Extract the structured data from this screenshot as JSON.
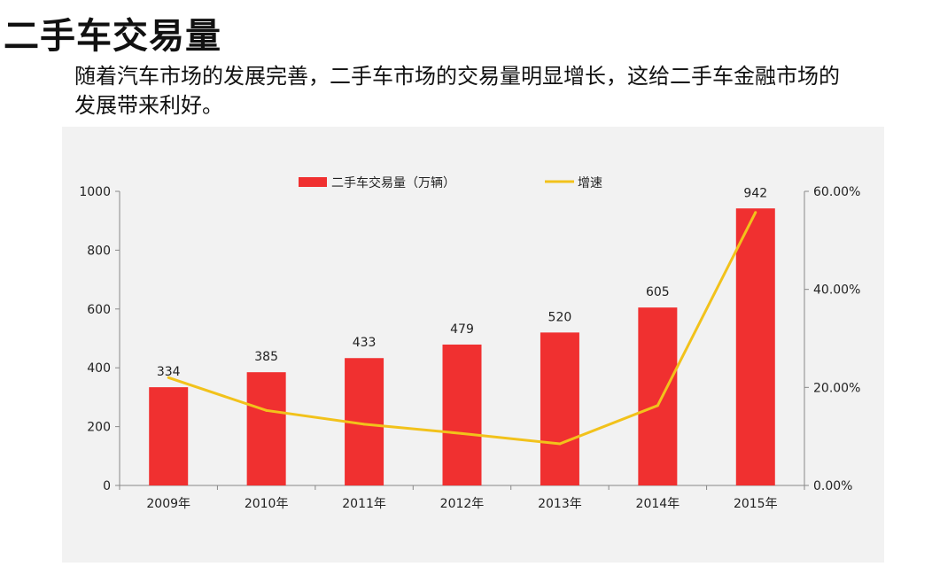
{
  "page": {
    "title": "二手车交易量",
    "subtitle": "随着汽车市场的发展完善，二手车市场的交易量明显增长，这给二手车金融市场的发展带来利好。"
  },
  "chart_data": {
    "type": "bar+line",
    "categories": [
      "2009年",
      "2010年",
      "2011年",
      "2012年",
      "2013年",
      "2014年",
      "2015年"
    ],
    "series": [
      {
        "name": "二手车交易量（万辆）",
        "type": "bar",
        "axis": "left",
        "color": "#f03030",
        "values": [
          334,
          385,
          433,
          479,
          520,
          605,
          942
        ],
        "data_labels": [
          "334",
          "385",
          "433",
          "479",
          "520",
          "605",
          "942"
        ]
      },
      {
        "name": "增速",
        "type": "line",
        "axis": "right",
        "color": "#f2c21b",
        "values": [
          22.0,
          15.3,
          12.5,
          10.6,
          8.5,
          16.3,
          55.7
        ]
      }
    ],
    "left_axis": {
      "ylim": [
        0,
        1000
      ],
      "ticks": [
        "0",
        "200",
        "400",
        "600",
        "800",
        "1000"
      ]
    },
    "right_axis": {
      "ylim": [
        0,
        60
      ],
      "ticks": [
        "0.00%",
        "20.00%",
        "40.00%",
        "60.00%"
      ]
    },
    "legend_position": "top",
    "grid": false
  }
}
